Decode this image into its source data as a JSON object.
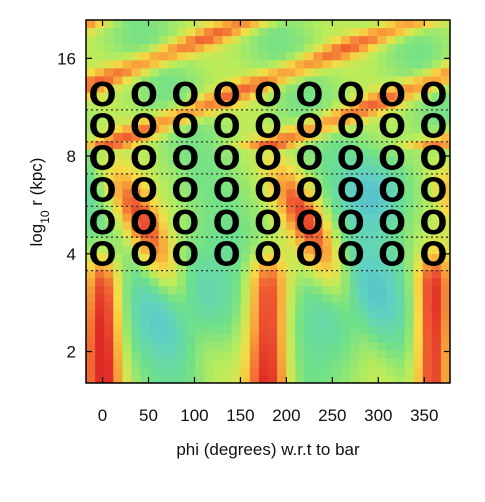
{
  "chart_data": {
    "type": "heatmap",
    "title": "",
    "xlabel": "phi (degrees) w.r.t to bar",
    "ylabel_parts": {
      "pre": "log",
      "sub": "10",
      "post": " r  (kpc)"
    },
    "x_range": [
      -18,
      378
    ],
    "y_range_kpc": [
      1.6,
      21.0
    ],
    "y_scale": "log",
    "x_ticks": [
      0,
      50,
      100,
      150,
      200,
      250,
      300,
      350
    ],
    "x_tick_labels": [
      "0",
      "50",
      "100",
      "150",
      "200",
      "250",
      "300",
      "350"
    ],
    "y_ticks": [
      2,
      4,
      8,
      16
    ],
    "y_tick_labels": [
      "2",
      "4",
      "8",
      "16"
    ],
    "colormap": [
      "#2f7fbf",
      "#4aa9d6",
      "#5fd0c4",
      "#6ee08a",
      "#b8ec5c",
      "#f6dc45",
      "#f8a23a",
      "#ee5a32",
      "#e02a26"
    ],
    "dotted_lines_r": [
      3.55,
      4.5,
      5.6,
      7.05,
      8.85,
      11.1
    ],
    "marker_symbol": "O",
    "marker_rows_r": [
      4.0,
      5.0,
      6.3,
      7.9,
      9.9,
      12.4
    ],
    "marker_cols_phi": [
      0,
      45,
      90,
      135,
      180,
      225,
      270,
      315,
      360
    ],
    "colors": {
      "marker": "#000000",
      "dotted_line": "#333333",
      "frame": "#000000"
    }
  }
}
